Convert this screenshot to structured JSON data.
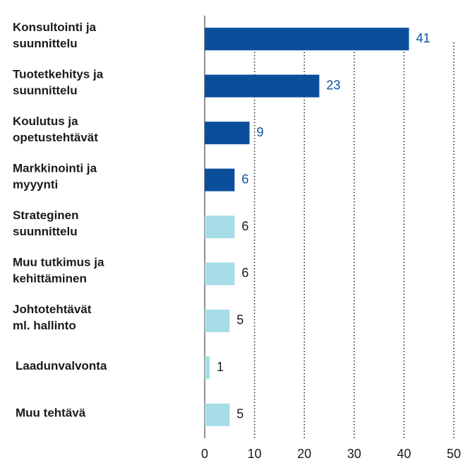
{
  "chart_data": {
    "type": "bar",
    "orientation": "horizontal",
    "categories": [
      [
        "Konsultointi ja",
        "suunnittelu"
      ],
      [
        "Tuotetkehitys ja",
        "suunnittelu"
      ],
      [
        "Koulutus ja",
        "opetustehtävät"
      ],
      [
        "Markkinointi ja",
        "myyynti"
      ],
      [
        "Strateginen",
        "suunnittelu"
      ],
      [
        "Muu tutkimus ja",
        "kehittäminen"
      ],
      [
        "Johtotehtävät",
        "ml. hallinto"
      ],
      [
        "Laadunvalvonta"
      ],
      [
        "Muu tehtävä"
      ]
    ],
    "values": [
      41,
      23,
      9,
      6,
      6,
      6,
      5,
      1,
      5
    ],
    "colors": [
      "#0b4f9c",
      "#0b4f9c",
      "#0b4f9c",
      "#0b4f9c",
      "#a6dde6",
      "#a6dde6",
      "#a6dde6",
      "#a6dde6",
      "#a6dde6"
    ],
    "label_colors": [
      "#0b4f9c",
      "#0b4f9c",
      "#0b4f9c",
      "#0b4f9c",
      "#1a1a1a",
      "#1a1a1a",
      "#1a1a1a",
      "#1a1a1a",
      "#1a1a1a"
    ],
    "xlim": [
      0,
      50
    ],
    "xticks": [
      0,
      10,
      20,
      30,
      40,
      50
    ],
    "grid": true
  }
}
